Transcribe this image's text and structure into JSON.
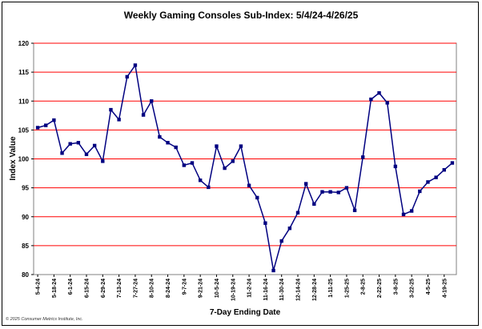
{
  "chart_data": {
    "type": "line",
    "title": "Weekly Gaming Consoles Sub-Index: 5/4/24-4/26/25",
    "xlabel": "7-Day Ending Date",
    "ylabel": "Index Value",
    "ylim": [
      80,
      120
    ],
    "yticks": [
      80,
      85,
      90,
      95,
      100,
      105,
      110,
      115,
      120
    ],
    "grid": "horizontal",
    "x_tick_labels": [
      "5-4-24",
      "5-18-24",
      "6-1-24",
      "6-15-24",
      "6-29-24",
      "7-13-24",
      "7-27-24",
      "8-10-24",
      "8-24-24",
      "9-7-24",
      "9-21-24",
      "10-5-24",
      "10-19-24",
      "11-2-24",
      "11-16-24",
      "11-30-24",
      "12-14-24",
      "12-28-24",
      "1-11-25",
      "1-25-25",
      "2-8-25",
      "2-22-25",
      "3-8-25",
      "3-22-25",
      "4-5-25",
      "4-19-25"
    ],
    "series": [
      {
        "color": "#000080",
        "values": [
          105.4,
          105.8,
          106.7,
          101.0,
          102.6,
          102.8,
          100.8,
          102.3,
          99.6,
          108.5,
          106.8,
          114.2,
          116.2,
          107.6,
          110.0,
          103.8,
          102.8,
          102.0,
          98.9,
          99.3,
          96.3,
          95.1,
          102.2,
          98.4,
          99.6,
          102.2,
          95.4,
          93.3,
          88.9,
          80.7,
          85.8,
          88.0,
          90.7,
          95.7,
          92.2,
          94.3,
          94.3,
          94.2,
          95.0,
          91.1,
          100.3,
          110.3,
          111.4,
          109.7,
          98.7,
          90.4,
          91.0,
          94.4,
          96.0,
          96.8,
          98.1,
          99.3
        ]
      }
    ]
  },
  "copyright": "© 2025 Consumer Metrics Institute, Inc."
}
